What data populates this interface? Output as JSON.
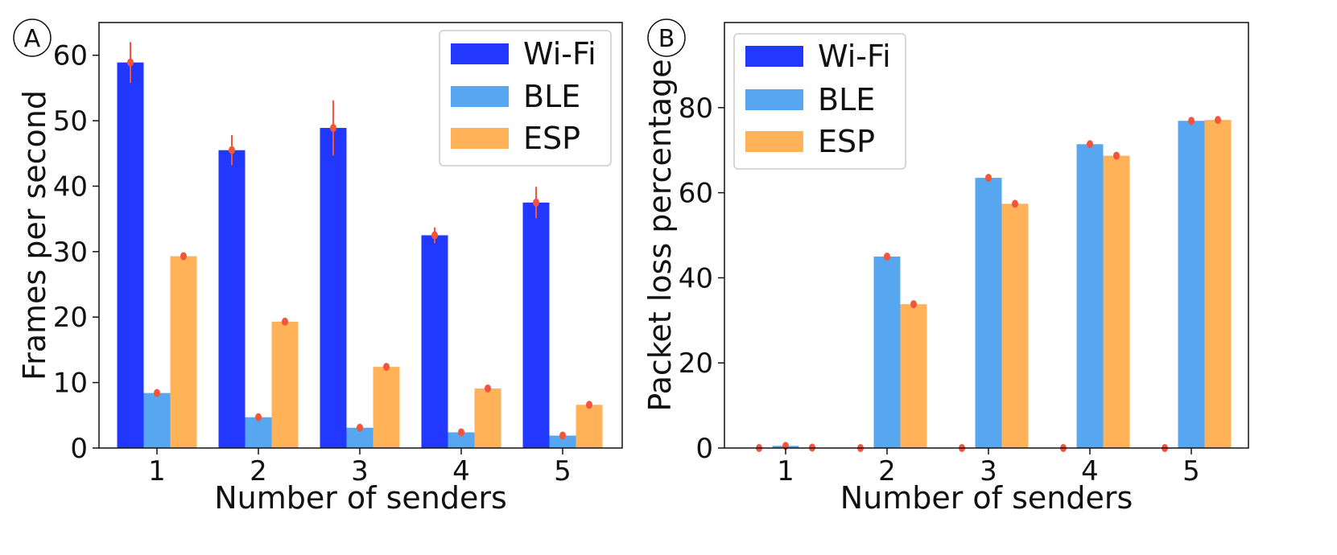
{
  "colors": {
    "wifi": "#2338ff",
    "ble": "#57a6f0",
    "esp": "#ffb257",
    "error": "#f4553a",
    "axis": "#111111",
    "legend_border": "#cccccc"
  },
  "chart_data": [
    {
      "panel": "A",
      "type": "bar",
      "title": "",
      "xlabel": "Number of senders",
      "ylabel": "Frames per second",
      "categories": [
        "1",
        "2",
        "3",
        "4",
        "5"
      ],
      "ylim": [
        0,
        65
      ],
      "yticks": [
        "0",
        "10",
        "20",
        "30",
        "40",
        "50",
        "60"
      ],
      "legend": "top-right",
      "grid": false,
      "series": [
        {
          "name": "Wi-Fi",
          "color_key": "wifi",
          "values": [
            58.9,
            45.5,
            48.9,
            32.5,
            37.5
          ],
          "errors": [
            3.1,
            2.3,
            4.2,
            1.2,
            2.4
          ]
        },
        {
          "name": "BLE",
          "color_key": "ble",
          "values": [
            8.4,
            4.7,
            3.1,
            2.4,
            1.9
          ],
          "errors": [
            0.3,
            0.3,
            0.3,
            0.2,
            0.2
          ]
        },
        {
          "name": "ESP",
          "color_key": "esp",
          "values": [
            29.3,
            19.3,
            12.4,
            9.1,
            6.6
          ],
          "errors": [
            0.3,
            0.3,
            0.3,
            0.3,
            0.3
          ]
        }
      ]
    },
    {
      "panel": "B",
      "type": "bar",
      "title": "",
      "xlabel": "Number of senders",
      "ylabel": "Packet loss percentage",
      "categories": [
        "1",
        "2",
        "3",
        "4",
        "5"
      ],
      "ylim": [
        0,
        100
      ],
      "yticks": [
        "0",
        "20",
        "40",
        "60",
        "80"
      ],
      "legend": "top-left",
      "grid": false,
      "series": [
        {
          "name": "Wi-Fi",
          "color_key": "wifi",
          "values": [
            0,
            0,
            0,
            0,
            0
          ],
          "errors": [
            0.2,
            0.2,
            0.2,
            0.2,
            0.2
          ]
        },
        {
          "name": "BLE",
          "color_key": "ble",
          "values": [
            0.5,
            45.0,
            63.5,
            71.4,
            76.9
          ],
          "errors": [
            0.3,
            0.3,
            0.3,
            0.3,
            0.3
          ]
        },
        {
          "name": "ESP",
          "color_key": "esp",
          "values": [
            0.1,
            33.8,
            57.4,
            68.7,
            77.1
          ],
          "errors": [
            0.3,
            0.3,
            0.3,
            0.3,
            0.3
          ]
        }
      ]
    }
  ]
}
